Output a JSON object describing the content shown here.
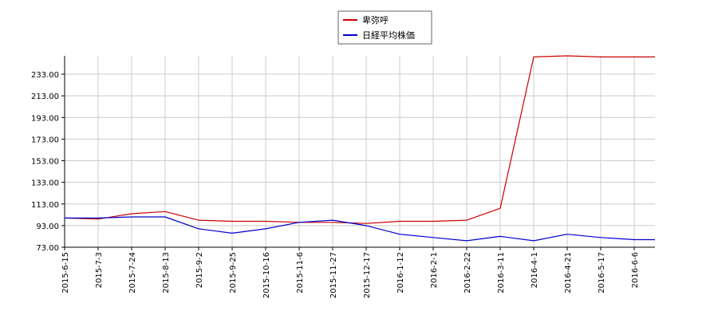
{
  "chart_data": {
    "type": "line",
    "title": "",
    "xlabel": "",
    "ylabel": "",
    "ylim": [
      73.0,
      250.0
    ],
    "y_ticks": [
      "73.00",
      "93.00",
      "113.00",
      "133.00",
      "153.00",
      "173.00",
      "193.00",
      "213.00",
      "233.00"
    ],
    "x": [
      "2015-6-15",
      "2015-7-3",
      "2015-7-24",
      "2015-8-13",
      "2015-9-2",
      "2015-9-25",
      "2015-10-16",
      "2015-11-6",
      "2015-11-27",
      "2015-12-17",
      "2016-1-12",
      "2016-2-1",
      "2016-2-22",
      "2016-3-11",
      "2016-4-1",
      "2016-4-21",
      "2016-5-17",
      "2016-6-6"
    ],
    "grid": true,
    "legend_position": "top-center",
    "series": [
      {
        "name": "卑弥呼",
        "color": "#cc0000",
        "values": [
          100,
          99,
          104,
          106,
          98,
          97,
          97,
          96,
          96,
          95,
          97,
          97,
          98,
          109,
          249,
          250,
          249,
          249
        ]
      },
      {
        "name": "日経平均株価",
        "color": "#0000cc",
        "values": [
          100,
          100,
          101,
          101,
          90,
          86,
          90,
          96,
          98,
          93,
          85,
          82,
          79,
          83,
          79,
          85,
          82,
          80
        ]
      }
    ]
  }
}
